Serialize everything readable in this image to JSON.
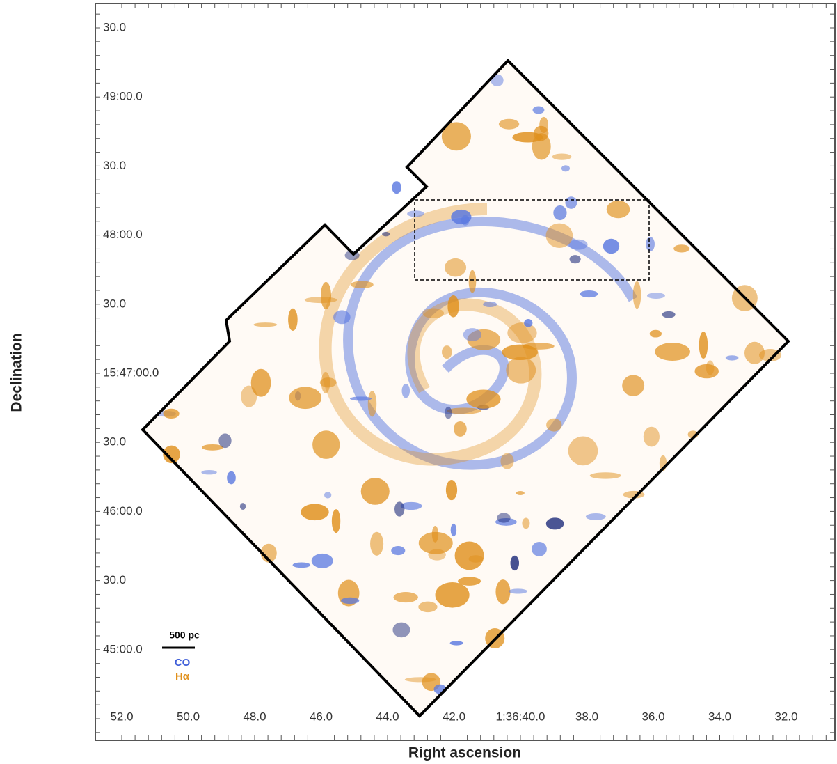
{
  "figure": {
    "x_label": "Right ascension",
    "y_label": "Declination",
    "x_tick_labels": [
      "52.0",
      "50.0",
      "48.0",
      "46.0",
      "44.0",
      "42.0",
      "1:36:40.0",
      "38.0",
      "36.0",
      "34.0",
      "32.0"
    ],
    "y_tick_labels": [
      "30.0",
      "49:00.0",
      "30.0",
      "48:00.0",
      "30.0",
      "15:47:00.0",
      "30.0",
      "46:00.0",
      "30.0",
      "45:00.0"
    ],
    "scale_bar": "500 pc",
    "legend": [
      {
        "name": "CO",
        "color": "#3f5ed8"
      },
      {
        "name": "Hα",
        "color": "#e0901c"
      }
    ]
  }
}
